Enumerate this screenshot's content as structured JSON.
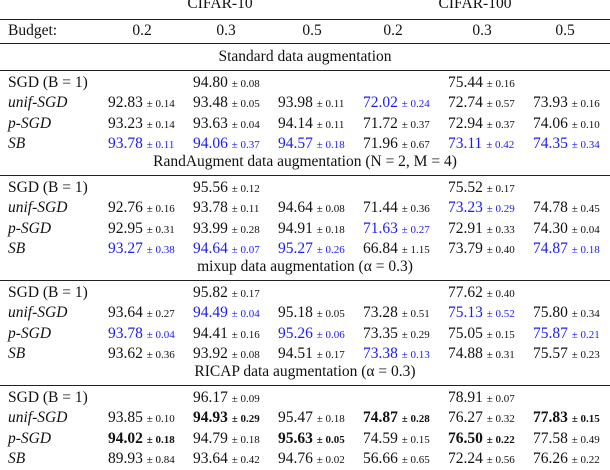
{
  "header": {
    "groups": [
      "CIFAR-10",
      "CIFAR-100"
    ],
    "budget_label": "Budget:",
    "budgets": [
      "0.2",
      "0.3",
      "0.5",
      "0.2",
      "0.3",
      "0.5"
    ]
  },
  "sections": [
    {
      "title": "Standard data augmentation",
      "rows": [
        {
          "label": "SGD (B = 1)",
          "italic": false,
          "cells": [
            null,
            {
              "v": "94.80",
              "s": "± 0.08"
            },
            null,
            null,
            {
              "v": "75.44",
              "s": "± 0.16"
            },
            null
          ]
        },
        {
          "label": "unif-SGD",
          "italic": true,
          "cells": [
            {
              "v": "92.83",
              "s": "± 0.14"
            },
            {
              "v": "93.48",
              "s": "± 0.05"
            },
            {
              "v": "93.98",
              "s": "± 0.11"
            },
            {
              "v": "72.02",
              "s": "± 0.24",
              "c": "blue"
            },
            {
              "v": "72.74",
              "s": "± 0.57"
            },
            {
              "v": "73.93",
              "s": "± 0.16"
            }
          ]
        },
        {
          "label": "p-SGD",
          "italic": true,
          "cells": [
            {
              "v": "93.23",
              "s": "± 0.14"
            },
            {
              "v": "93.63",
              "s": "± 0.04"
            },
            {
              "v": "94.14",
              "s": "± 0.11"
            },
            {
              "v": "71.72",
              "s": "± 0.37"
            },
            {
              "v": "72.94",
              "s": "± 0.37"
            },
            {
              "v": "74.06",
              "s": "± 0.10"
            }
          ]
        },
        {
          "label": "SB",
          "italic": true,
          "cells": [
            {
              "v": "93.78",
              "s": "± 0.11",
              "c": "blue"
            },
            {
              "v": "94.06",
              "s": "± 0.37",
              "c": "blue"
            },
            {
              "v": "94.57",
              "s": "± 0.18",
              "c": "blue"
            },
            {
              "v": "71.96",
              "s": "± 0.67"
            },
            {
              "v": "73.11",
              "s": "± 0.42",
              "c": "blue"
            },
            {
              "v": "74.35",
              "s": "± 0.34",
              "c": "blue"
            }
          ]
        }
      ]
    },
    {
      "title": "RandAugment data augmentation (N = 2, M = 4)",
      "rows": [
        {
          "label": "SGD (B = 1)",
          "italic": false,
          "cells": [
            null,
            {
              "v": "95.56",
              "s": "± 0.12"
            },
            null,
            null,
            {
              "v": "75.52",
              "s": "± 0.17"
            },
            null
          ]
        },
        {
          "label": "unif-SGD",
          "italic": true,
          "cells": [
            {
              "v": "92.76",
              "s": "± 0.16"
            },
            {
              "v": "93.78",
              "s": "± 0.11"
            },
            {
              "v": "94.64",
              "s": "± 0.08"
            },
            {
              "v": "71.44",
              "s": "± 0.36"
            },
            {
              "v": "73.23",
              "s": "± 0.29",
              "c": "blue"
            },
            {
              "v": "74.78",
              "s": "± 0.45"
            }
          ]
        },
        {
          "label": "p-SGD",
          "italic": true,
          "cells": [
            {
              "v": "92.95",
              "s": "± 0.31"
            },
            {
              "v": "93.99",
              "s": "± 0.28"
            },
            {
              "v": "94.91",
              "s": "± 0.18"
            },
            {
              "v": "71.63",
              "s": "± 0.27",
              "c": "blue"
            },
            {
              "v": "72.91",
              "s": "± 0.33"
            },
            {
              "v": "74.30",
              "s": "± 0.04"
            }
          ]
        },
        {
          "label": "SB",
          "italic": true,
          "cells": [
            {
              "v": "93.27",
              "s": "± 0.38",
              "c": "blue"
            },
            {
              "v": "94.64",
              "s": "± 0.07",
              "c": "blue"
            },
            {
              "v": "95.27",
              "s": "± 0.26",
              "c": "blue"
            },
            {
              "v": "66.84",
              "s": "± 1.15"
            },
            {
              "v": "73.79",
              "s": "± 0.40"
            },
            {
              "v": "74.87",
              "s": "± 0.18",
              "c": "blue"
            }
          ]
        }
      ]
    },
    {
      "title": "mixup data augmentation (α = 0.3)",
      "rows": [
        {
          "label": "SGD (B = 1)",
          "italic": false,
          "cells": [
            null,
            {
              "v": "95.82",
              "s": "± 0.17"
            },
            null,
            null,
            {
              "v": "77.62",
              "s": "± 0.40"
            },
            null
          ]
        },
        {
          "label": "unif-SGD",
          "italic": true,
          "cells": [
            {
              "v": "93.64",
              "s": "± 0.27"
            },
            {
              "v": "94.49",
              "s": "± 0.04",
              "c": "blue"
            },
            {
              "v": "95.18",
              "s": "± 0.05"
            },
            {
              "v": "73.28",
              "s": "± 0.51"
            },
            {
              "v": "75.13",
              "s": "± 0.52",
              "c": "blue"
            },
            {
              "v": "75.80",
              "s": "± 0.34"
            }
          ]
        },
        {
          "label": "p-SGD",
          "italic": true,
          "cells": [
            {
              "v": "93.78",
              "s": "± 0.04",
              "c": "blue"
            },
            {
              "v": "94.41",
              "s": "± 0.16"
            },
            {
              "v": "95.26",
              "s": "± 0.06",
              "c": "blue"
            },
            {
              "v": "73.35",
              "s": "± 0.29"
            },
            {
              "v": "75.05",
              "s": "± 0.15"
            },
            {
              "v": "75.87",
              "s": "± 0.21",
              "c": "blue"
            }
          ]
        },
        {
          "label": "SB",
          "italic": true,
          "cells": [
            {
              "v": "93.62",
              "s": "± 0.36"
            },
            {
              "v": "93.92",
              "s": "± 0.08"
            },
            {
              "v": "94.51",
              "s": "± 0.17"
            },
            {
              "v": "73.38",
              "s": "± 0.13",
              "c": "blue"
            },
            {
              "v": "74.88",
              "s": "± 0.31"
            },
            {
              "v": "75.57",
              "s": "± 0.23"
            }
          ]
        }
      ]
    },
    {
      "title": "RICAP data augmentation (α = 0.3)",
      "rows": [
        {
          "label": "SGD (B = 1)",
          "italic": false,
          "cells": [
            null,
            {
              "v": "96.17",
              "s": "± 0.09"
            },
            null,
            null,
            {
              "v": "78.91",
              "s": "± 0.07"
            },
            null
          ]
        },
        {
          "label": "unif-SGD",
          "italic": true,
          "cells": [
            {
              "v": "93.85",
              "s": "± 0.10"
            },
            {
              "v": "94.93",
              "s": "± 0.29",
              "b": true
            },
            {
              "v": "95.47",
              "s": "± 0.18"
            },
            {
              "v": "74.87",
              "s": "± 0.28",
              "b": true
            },
            {
              "v": "76.27",
              "s": "± 0.32"
            },
            {
              "v": "77.83",
              "s": "± 0.15",
              "b": true
            }
          ]
        },
        {
          "label": "p-SGD",
          "italic": true,
          "cells": [
            {
              "v": "94.02",
              "s": "± 0.18",
              "b": true
            },
            {
              "v": "94.79",
              "s": "± 0.18"
            },
            {
              "v": "95.63",
              "s": "± 0.05",
              "b": true
            },
            {
              "v": "74.59",
              "s": "± 0.15"
            },
            {
              "v": "76.50",
              "s": "± 0.22",
              "b": true
            },
            {
              "v": "77.58",
              "s": "± 0.49"
            }
          ]
        },
        {
          "label": "SB",
          "italic": true,
          "cells": [
            {
              "v": "89.93",
              "s": "± 0.84"
            },
            {
              "v": "93.64",
              "s": "± 0.42"
            },
            {
              "v": "94.76",
              "s": "± 0.02"
            },
            {
              "v": "56.66",
              "s": "± 0.65"
            },
            {
              "v": "72.24",
              "s": "± 0.56"
            },
            {
              "v": "76.26",
              "s": "± 0.22"
            }
          ]
        }
      ]
    }
  ]
}
